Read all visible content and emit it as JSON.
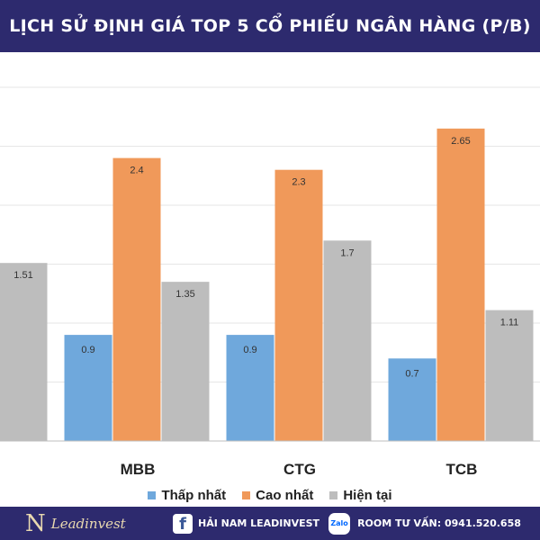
{
  "title": "LỊCH SỬ ĐỊNH GIÁ TOP 5 CỔ PHIẾU NGÂN HÀNG (P/B)",
  "chart_data": {
    "type": "bar",
    "title": "LỊCH SỬ ĐỊNH GIÁ TOP 5 CỔ PHIẾU NGÂN HÀNG (P/B)",
    "categories": [
      "",
      "MBB",
      "CTG",
      "TCB"
    ],
    "series": [
      {
        "name": "Thấp nhất",
        "color": "#6fa8dc",
        "values": [
          null,
          0.9,
          0.9,
          0.7
        ]
      },
      {
        "name": "Cao nhất",
        "color": "#f0995a",
        "values": [
          null,
          2.4,
          2.3,
          2.65
        ]
      },
      {
        "name": "Hiện tại",
        "color": "#bdbdbd",
        "values": [
          1.51,
          1.35,
          1.7,
          1.11
        ]
      }
    ],
    "value_labels": [
      [
        "",
        "0.9",
        "0.9",
        "0.7"
      ],
      [
        "",
        "2.4",
        "2.3",
        "2.65"
      ],
      [
        "1.51",
        "1.35",
        "1.7",
        "1.11"
      ]
    ],
    "ylim": [
      0,
      3
    ],
    "grid": true,
    "legend_position": "bottom"
  },
  "footer": {
    "brand_mark": "N",
    "brand_name": "Leadinvest",
    "facebook_icon": "facebook-icon",
    "facebook_glyph": "f",
    "facebook_text": "HẢI NAM LEADINVEST",
    "zalo_icon": "zalo-icon",
    "zalo_glyph": "Zalo",
    "room_text": "ROOM TƯ VẤN: 0941.520.658"
  }
}
